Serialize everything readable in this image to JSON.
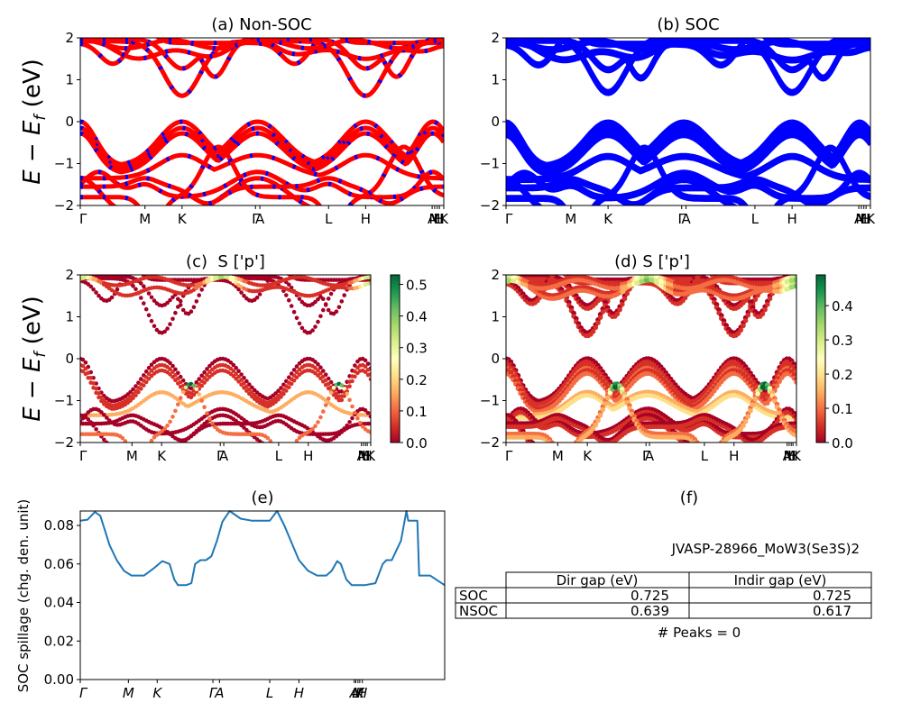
{
  "colors": {
    "nonsoc_band": "#ff0000",
    "nonsoc_dash": "#0000ff",
    "soc_band": "#0000ff",
    "spillage_line": "#1f77b4",
    "cmap": [
      "#a50026",
      "#d73027",
      "#f46d43",
      "#fdae61",
      "#fee08b",
      "#ffffbf",
      "#d9ef8b",
      "#a6d96a",
      "#66bd63",
      "#1a9850",
      "#006837"
    ]
  },
  "kpath_labels": [
    "Γ",
    "M",
    "K",
    "Γ",
    "A",
    "L",
    "H",
    "A",
    "M",
    "L",
    "H",
    "K"
  ],
  "kpath_positions": [
    0,
    0.178,
    0.28,
    0.482,
    0.494,
    0.683,
    0.785,
    0.968,
    0.975,
    0.982,
    0.988,
    1.0
  ],
  "panel_e_kpath_labels": [
    "Γ",
    "M",
    "K",
    "Γ",
    "A",
    "L",
    "H",
    "A",
    "L",
    "M",
    "K",
    "H"
  ],
  "panel_e_kpath_positions": [
    0,
    0.132,
    0.211,
    0.364,
    0.382,
    0.52,
    0.6,
    0.752,
    0.756,
    0.762,
    0.767,
    0.774
  ],
  "chart_data": [
    {
      "id": "a",
      "type": "line",
      "title": "(a) Non-SOC",
      "ylabel": "E − E_f (eV)",
      "ylim": [
        -2,
        2
      ],
      "yticks": [
        -2,
        -1,
        0,
        1,
        2
      ],
      "series_note": "band structure, red lines with blue dashes",
      "vbm": 0.0,
      "cbm": 0.617
    },
    {
      "id": "b",
      "type": "line",
      "title": "(b) SOC",
      "ylim": [
        -2,
        2
      ],
      "yticks": [
        -2,
        -1,
        0,
        1,
        2
      ],
      "vbm": 0.0,
      "cbm": 0.725
    },
    {
      "id": "c",
      "type": "scatter",
      "title": "(c)  S ['p']",
      "ylabel": "E − E_f (eV)",
      "ylim": [
        -2,
        2
      ],
      "yticks": [
        -2,
        -1,
        0,
        1,
        2
      ],
      "colorbar": {
        "range": [
          0.0,
          0.53
        ],
        "ticks": [
          "0.0",
          "0.1",
          "0.2",
          "0.3",
          "0.4",
          "0.5"
        ]
      }
    },
    {
      "id": "d",
      "type": "scatter",
      "title": "(d) S ['p']",
      "ylim": [
        -2,
        2
      ],
      "yticks": [
        -2,
        -1,
        0,
        1,
        2
      ],
      "colorbar": {
        "range": [
          0.0,
          0.49
        ],
        "ticks": [
          "0.0",
          "0.1",
          "0.2",
          "0.3",
          "0.4"
        ]
      }
    },
    {
      "id": "e",
      "type": "line",
      "title": "(e)",
      "ylabel": "SOC spillage (chg. den. unit)",
      "ylim": [
        0,
        0.0875
      ],
      "yticks": [
        "0.00",
        "0.02",
        "0.04",
        "0.06",
        "0.08"
      ],
      "x": [
        0,
        0.02,
        0.04,
        0.055,
        0.07,
        0.08,
        0.1,
        0.12,
        0.14,
        0.16,
        0.175,
        0.2,
        0.225,
        0.245,
        0.258,
        0.268,
        0.275,
        0.29,
        0.305,
        0.315,
        0.33,
        0.345,
        0.36,
        0.375,
        0.39,
        0.41,
        0.44,
        0.47,
        0.49,
        0.505,
        0.52,
        0.54,
        0.56,
        0.58,
        0.6,
        0.625,
        0.65,
        0.665,
        0.675,
        0.69,
        0.705,
        0.715,
        0.73,
        0.745,
        0.76,
        0.78,
        0.81,
        0.83,
        0.84,
        0.855,
        0.86,
        0.88,
        0.895,
        0.9,
        0.925,
        0.93,
        0.96,
        1.0
      ],
      "values": [
        0.0825,
        0.083,
        0.087,
        0.085,
        0.076,
        0.07,
        0.062,
        0.0565,
        0.054,
        0.054,
        0.054,
        0.0575,
        0.0615,
        0.06,
        0.052,
        0.049,
        0.049,
        0.049,
        0.05,
        0.06,
        0.062,
        0.062,
        0.064,
        0.072,
        0.082,
        0.0875,
        0.0835,
        0.0825,
        0.0825,
        0.0825,
        0.0825,
        0.0875,
        0.08,
        0.071,
        0.062,
        0.0565,
        0.054,
        0.054,
        0.054,
        0.0565,
        0.0615,
        0.06,
        0.052,
        0.049,
        0.049,
        0.049,
        0.05,
        0.06,
        0.062,
        0.062,
        0.064,
        0.072,
        0.0875,
        0.0825,
        0.0825,
        0.054,
        0.054,
        0.049
      ]
    },
    {
      "id": "f",
      "type": "table",
      "title": "(f)",
      "material": "JVASP-28966_MoW3(Se3S)2",
      "columns": [
        "",
        "Dir gap (eV)",
        "Indir gap (eV)"
      ],
      "rows": [
        {
          "label": "SOC",
          "dir": "0.725",
          "indir": "0.725"
        },
        {
          "label": "NSOC",
          "dir": "0.639",
          "indir": "0.617"
        }
      ],
      "peaks": "# Peaks = 0"
    }
  ]
}
